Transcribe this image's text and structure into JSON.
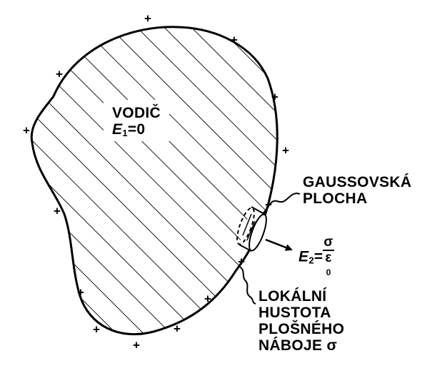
{
  "conductor": {
    "line1": "VODIČ",
    "field_symbol": "E",
    "field_subscript": "1",
    "field_value": "=0"
  },
  "gaussian_surface": {
    "line1": "GAUSSOVSKÁ",
    "line2": "PLOCHA"
  },
  "outer_field": {
    "symbol": "E",
    "subscript": "2",
    "equals": "=",
    "numerator": "σ",
    "denominator": "ε",
    "denominator_subscript": "0"
  },
  "charge_density": {
    "line1": "LOKÁLNÍ",
    "line2": "HUSTOTA",
    "line3": "PLOŠNÉHO",
    "line4": "NÁBOJE σ"
  },
  "charge_sign": "+"
}
